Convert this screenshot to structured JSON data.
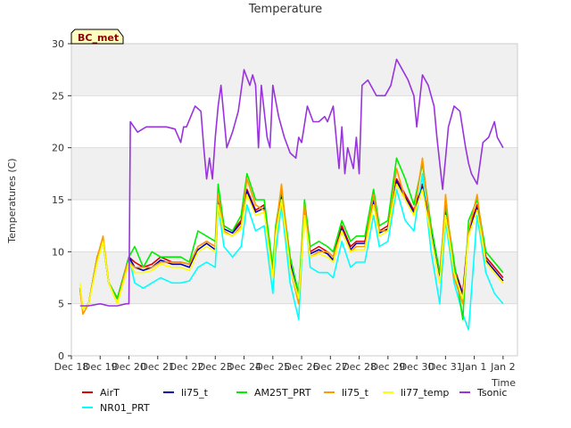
{
  "chart_data": {
    "type": "line",
    "title": "Temperature",
    "xlabel": "Time",
    "ylabel": "Temperatures (C)",
    "badge": "BC_met",
    "x_ticks": [
      "Dec 18",
      "Dec 19",
      "Dec 20",
      "Dec 21",
      "Dec 22",
      "Dec 23",
      "Dec 24",
      "Dec 25",
      "Dec 26",
      "Dec 27",
      "Dec 28",
      "Dec 29",
      "Dec 30",
      "Dec 31",
      "Jan 1",
      "Jan 2"
    ],
    "xlim": [
      0,
      15.5
    ],
    "ylim": [
      0,
      30
    ],
    "y_ticks": [
      0,
      5,
      10,
      15,
      20,
      25,
      30
    ],
    "grid": "horizontal bands",
    "legend_position": "bottom",
    "series": [
      {
        "name": "AirT",
        "color": "#dd0000",
        "x": [
          0.3,
          0.4,
          0.6,
          0.9,
          1.1,
          1.3,
          1.6,
          1.9,
          2.0,
          2.2,
          2.5,
          2.8,
          3.1,
          3.5,
          3.8,
          4.1,
          4.4,
          4.7,
          5.0,
          5.1,
          5.3,
          5.6,
          5.9,
          6.1,
          6.4,
          6.7,
          7.0,
          7.1,
          7.3,
          7.6,
          7.9,
          8.1,
          8.3,
          8.6,
          8.9,
          9.1,
          9.4,
          9.7,
          9.9,
          10.2,
          10.5,
          10.7,
          11.0,
          11.3,
          11.6,
          11.9,
          12.2,
          12.5,
          12.8,
          13.0,
          13.3,
          13.6,
          13.8,
          14.1,
          14.4,
          14.7,
          15.0
        ],
        "y": [
          6.5,
          4.5,
          5.0,
          9.5,
          11.0,
          7.0,
          5.5,
          8.5,
          9.5,
          9.0,
          8.5,
          8.8,
          9.5,
          9.0,
          9.0,
          8.8,
          10.5,
          11.0,
          10.5,
          15.0,
          12.5,
          12.0,
          13.0,
          16.0,
          14.0,
          14.5,
          8.0,
          12.0,
          15.5,
          9.0,
          6.0,
          14.0,
          10.0,
          10.5,
          10.0,
          9.5,
          12.5,
          10.5,
          11.0,
          11.0,
          15.0,
          12.0,
          12.5,
          17.0,
          15.5,
          14.0,
          16.5,
          12.0,
          7.5,
          14.0,
          8.5,
          6.0,
          12.0,
          14.5,
          9.5,
          8.5,
          7.5
        ]
      },
      {
        "name": "NR01_PRT",
        "color": "#00ffff",
        "x": [
          0.3,
          0.4,
          0.6,
          0.9,
          1.1,
          1.3,
          1.6,
          1.9,
          2.0,
          2.2,
          2.5,
          2.8,
          3.1,
          3.5,
          3.8,
          4.1,
          4.4,
          4.7,
          5.0,
          5.1,
          5.3,
          5.6,
          5.9,
          6.1,
          6.4,
          6.7,
          7.0,
          7.1,
          7.3,
          7.6,
          7.9,
          8.1,
          8.3,
          8.6,
          8.9,
          9.1,
          9.4,
          9.7,
          9.9,
          10.2,
          10.5,
          10.7,
          11.0,
          11.3,
          11.6,
          11.9,
          12.2,
          12.5,
          12.8,
          13.0,
          13.3,
          13.6,
          13.8,
          14.1,
          14.4,
          14.7,
          15.0
        ],
        "y": [
          6.5,
          4.5,
          5.0,
          9.5,
          11.0,
          7.0,
          5.5,
          8.5,
          9.5,
          7.0,
          6.5,
          7.0,
          7.5,
          7.0,
          7.0,
          7.2,
          8.5,
          9.0,
          8.5,
          14.5,
          10.5,
          9.5,
          10.5,
          14.5,
          12.0,
          12.5,
          6.0,
          10.0,
          14.5,
          7.0,
          3.5,
          14.5,
          8.5,
          8.0,
          8.0,
          7.5,
          11.0,
          8.5,
          9.0,
          9.0,
          13.5,
          10.5,
          11.0,
          16.0,
          13.0,
          12.0,
          17.5,
          10.0,
          5.0,
          13.0,
          7.0,
          4.0,
          2.5,
          13.5,
          8.0,
          6.0,
          5.0
        ]
      },
      {
        "name": "li75_t",
        "color": "#0000bb",
        "x": [
          0.3,
          0.4,
          0.6,
          0.9,
          1.1,
          1.3,
          1.6,
          1.9,
          2.0,
          2.2,
          2.5,
          2.8,
          3.1,
          3.5,
          3.8,
          4.1,
          4.4,
          4.7,
          5.0,
          5.1,
          5.3,
          5.6,
          5.9,
          6.1,
          6.4,
          6.7,
          7.0,
          7.1,
          7.3,
          7.6,
          7.9,
          8.1,
          8.3,
          8.6,
          8.9,
          9.1,
          9.4,
          9.7,
          9.9,
          10.2,
          10.5,
          10.7,
          11.0,
          11.3,
          11.6,
          11.9,
          12.2,
          12.5,
          12.8,
          13.0,
          13.3,
          13.6,
          13.8,
          14.1,
          14.4,
          14.7,
          15.0
        ],
        "y": [
          6.5,
          4.5,
          5.0,
          9.5,
          11.0,
          7.0,
          5.5,
          8.5,
          9.5,
          8.5,
          8.2,
          8.5,
          9.2,
          8.8,
          8.8,
          8.5,
          10.2,
          10.8,
          10.2,
          14.8,
          12.2,
          11.8,
          12.8,
          15.8,
          13.8,
          14.2,
          7.8,
          11.8,
          15.2,
          8.8,
          5.8,
          13.8,
          9.8,
          10.2,
          9.8,
          9.2,
          12.2,
          10.2,
          10.8,
          10.8,
          14.8,
          11.8,
          12.2,
          16.8,
          15.2,
          13.8,
          16.2,
          11.8,
          7.2,
          13.8,
          8.2,
          5.8,
          11.8,
          14.2,
          9.2,
          8.2,
          7.2
        ]
      },
      {
        "name": "AM25T_PRT",
        "color": "#00ee00",
        "x": [
          0.3,
          0.4,
          0.6,
          0.9,
          1.1,
          1.3,
          1.6,
          1.9,
          2.0,
          2.2,
          2.5,
          2.8,
          3.1,
          3.5,
          3.8,
          4.1,
          4.4,
          4.7,
          5.0,
          5.1,
          5.3,
          5.6,
          5.9,
          6.1,
          6.4,
          6.7,
          7.0,
          7.1,
          7.3,
          7.6,
          7.9,
          8.1,
          8.3,
          8.6,
          8.9,
          9.1,
          9.4,
          9.7,
          9.9,
          10.2,
          10.5,
          10.7,
          11.0,
          11.3,
          11.6,
          11.9,
          12.2,
          12.5,
          12.8,
          13.0,
          13.3,
          13.6,
          13.8,
          14.1,
          14.4,
          14.7,
          15.0
        ],
        "y": [
          6.5,
          4.5,
          5.0,
          9.5,
          11.0,
          7.0,
          5.5,
          8.5,
          9.5,
          10.5,
          8.5,
          10.0,
          9.5,
          9.5,
          9.5,
          9.0,
          12.0,
          11.5,
          11.0,
          16.5,
          12.5,
          12.0,
          13.5,
          17.5,
          15.0,
          15.0,
          8.5,
          12.5,
          16.0,
          9.5,
          6.0,
          15.0,
          10.5,
          11.0,
          10.5,
          10.0,
          13.0,
          11.0,
          11.5,
          11.5,
          16.0,
          12.5,
          13.0,
          19.0,
          17.0,
          14.5,
          18.5,
          12.5,
          8.0,
          14.5,
          9.0,
          3.5,
          13.0,
          15.0,
          10.0,
          9.0,
          8.0
        ]
      },
      {
        "name": "li75_t",
        "color": "#ff9900",
        "x": [
          0.3,
          0.4,
          0.6,
          0.9,
          1.1,
          1.3,
          1.6,
          1.9,
          2.0,
          2.2,
          2.5,
          2.8,
          3.1,
          3.5,
          3.8,
          4.1,
          4.4,
          4.7,
          5.0,
          5.1,
          5.3,
          5.6,
          5.9,
          6.1,
          6.4,
          6.7,
          7.0,
          7.1,
          7.3,
          7.6,
          7.9,
          8.1,
          8.3,
          8.6,
          8.9,
          9.1,
          9.4,
          9.7,
          9.9,
          10.2,
          10.5,
          10.7,
          11.0,
          11.3,
          11.6,
          11.9,
          12.2,
          12.5,
          12.8,
          13.0,
          13.3,
          13.6,
          13.8,
          14.1,
          14.4,
          14.7,
          15.0
        ],
        "y": [
          6.5,
          4.0,
          5.0,
          9.5,
          11.5,
          7.0,
          5.0,
          8.5,
          9.0,
          8.5,
          8.5,
          8.5,
          9.0,
          9.0,
          9.0,
          8.8,
          10.5,
          11.0,
          10.5,
          15.5,
          12.0,
          11.5,
          12.5,
          17.0,
          14.5,
          14.0,
          7.5,
          12.0,
          16.5,
          8.5,
          5.0,
          14.5,
          9.5,
          10.0,
          10.0,
          9.5,
          12.0,
          10.0,
          10.5,
          10.5,
          15.5,
          12.0,
          12.0,
          18.0,
          15.0,
          13.5,
          19.0,
          11.5,
          7.0,
          15.5,
          7.5,
          5.0,
          12.0,
          15.5,
          9.0,
          8.0,
          7.0
        ]
      },
      {
        "name": "li77_temp",
        "color": "#ffff00",
        "x": [
          0.3,
          0.4,
          0.6,
          0.9,
          1.1,
          1.3,
          1.6,
          1.9,
          2.0,
          2.2,
          2.5,
          2.8,
          3.1,
          3.5,
          3.8,
          4.1,
          4.4,
          4.7,
          5.0,
          5.1,
          5.3,
          5.6,
          5.9,
          6.1,
          6.4,
          6.7,
          7.0,
          7.1,
          7.3,
          7.6,
          7.9,
          8.1,
          8.3,
          8.6,
          8.9,
          9.1,
          9.4,
          9.7,
          9.9,
          10.2,
          10.5,
          10.7,
          11.0,
          11.3,
          11.6,
          11.9,
          12.2,
          12.5,
          12.8,
          13.0,
          13.3,
          13.6,
          13.8,
          14.1,
          14.4,
          14.7,
          15.0
        ],
        "y": [
          7.0,
          4.5,
          5.0,
          9.0,
          11.0,
          7.0,
          5.0,
          8.0,
          9.0,
          8.0,
          8.0,
          8.2,
          8.8,
          8.5,
          8.5,
          8.2,
          10.0,
          10.5,
          10.0,
          14.5,
          11.8,
          11.5,
          12.2,
          15.5,
          13.5,
          13.8,
          7.5,
          11.5,
          15.0,
          8.5,
          5.5,
          13.5,
          9.5,
          9.8,
          9.5,
          9.0,
          12.0,
          10.0,
          10.2,
          10.2,
          14.5,
          11.5,
          12.0,
          16.5,
          15.0,
          13.5,
          16.0,
          11.5,
          7.0,
          13.5,
          8.0,
          5.5,
          11.5,
          14.0,
          9.0,
          8.0,
          7.0
        ]
      },
      {
        "name": "Tsonic",
        "color": "#9933dd",
        "x": [
          0.3,
          0.6,
          1.0,
          1.3,
          1.6,
          1.9,
          2.0,
          2.05,
          2.3,
          2.6,
          3.0,
          3.3,
          3.6,
          3.8,
          3.9,
          4.0,
          4.3,
          4.5,
          4.6,
          4.7,
          4.8,
          4.9,
          5.0,
          5.1,
          5.2,
          5.4,
          5.6,
          5.8,
          6.0,
          6.2,
          6.3,
          6.4,
          6.5,
          6.6,
          6.8,
          6.9,
          7.0,
          7.2,
          7.4,
          7.6,
          7.8,
          7.9,
          8.0,
          8.2,
          8.4,
          8.6,
          8.8,
          8.9,
          9.1,
          9.3,
          9.4,
          9.5,
          9.6,
          9.8,
          9.9,
          10.0,
          10.1,
          10.3,
          10.6,
          10.9,
          11.1,
          11.3,
          11.5,
          11.7,
          11.9,
          12.0,
          12.2,
          12.4,
          12.6,
          12.7,
          12.9,
          13.0,
          13.1,
          13.3,
          13.5,
          13.7,
          13.8,
          13.9,
          14.1,
          14.3,
          14.5,
          14.7,
          14.8,
          15.0
        ],
        "y": [
          4.8,
          4.8,
          5.0,
          4.8,
          4.8,
          5.0,
          5.0,
          22.5,
          21.5,
          22.0,
          22.0,
          22.0,
          21.8,
          20.5,
          22.0,
          22.0,
          24.0,
          23.5,
          20.0,
          17.0,
          19.0,
          17.0,
          21.0,
          24.0,
          26.0,
          20.0,
          21.5,
          23.5,
          27.5,
          26.0,
          27.0,
          26.0,
          20.0,
          26.0,
          21.0,
          20.0,
          26.0,
          23.0,
          21.0,
          19.5,
          19.0,
          21.0,
          20.5,
          24.0,
          22.5,
          22.5,
          23.0,
          22.5,
          24.0,
          18.0,
          22.0,
          17.5,
          20.0,
          18.0,
          21.0,
          17.5,
          26.0,
          26.5,
          25.0,
          25.0,
          26.0,
          28.5,
          27.5,
          26.5,
          25.0,
          22.0,
          27.0,
          26.0,
          24.0,
          21.0,
          16.0,
          19.0,
          22.0,
          24.0,
          23.5,
          20.0,
          18.5,
          17.5,
          16.5,
          20.5,
          21.0,
          22.5,
          21.0,
          20.0
        ]
      }
    ]
  }
}
